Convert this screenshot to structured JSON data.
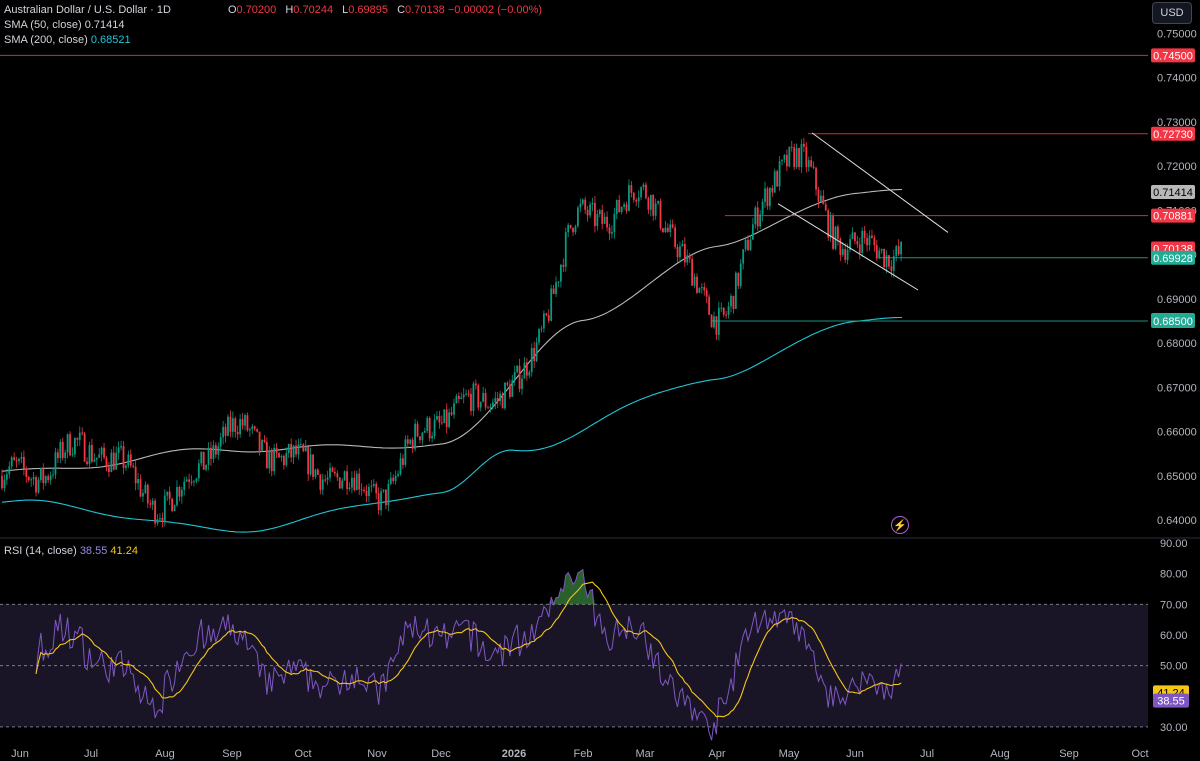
{
  "header": {
    "symbol": "Australian Dollar / U.S. Dollar · 1D",
    "open_label": "O",
    "open": "0.70200",
    "high_label": "H",
    "high": "0.70244",
    "low_label": "L",
    "low": "0.69895",
    "close_label": "C",
    "close": "0.70138",
    "change": "−0.00002 (−0.00%)",
    "sma50_label": "SMA (50, close)",
    "sma50_value": "0.71414",
    "sma200_label": "SMA (200, close)",
    "sma200_value": "0.68521",
    "currency_button": "USD",
    "rsi_label": "RSI (14, close)",
    "rsi_value": "38.55",
    "rsi_ma_value": "41.24"
  },
  "colors": {
    "background": "#000000",
    "up": "#089981",
    "down": "#f23645",
    "sma50": "#b8b8b8",
    "sma200": "#22c3d6",
    "rsi": "#7e57c2",
    "rsi_ma": "#f5c518",
    "rsi_band": "#1a1526",
    "overbought_fill": "#4caf50"
  },
  "chart_data": [
    {
      "type": "candlestick",
      "title": "Australian Dollar / U.S. Dollar · 1D",
      "y_axis": {
        "ticks": [
          "0.75000",
          "0.74000",
          "0.73000",
          "0.72000",
          "0.71000",
          "0.70000",
          "0.69000",
          "0.68000",
          "0.67000",
          "0.66000",
          "0.65000",
          "0.64000"
        ],
        "ylim": [
          0.6362,
          0.753
        ]
      },
      "x_axis": {
        "ticks": [
          "Jun",
          "Jul",
          "Aug",
          "Sep",
          "Oct",
          "Nov",
          "Dec",
          "2026",
          "Feb",
          "Mar",
          "Apr",
          "May",
          "Jun",
          "Jul",
          "Aug",
          "Sep",
          "Oct"
        ]
      },
      "price_path_anchors": [
        {
          "date": "Jun 2025",
          "close": 0.65
        },
        {
          "date": "Jul 2025",
          "close": 0.6565
        },
        {
          "date": "Aug 2025",
          "close": 0.644
        },
        {
          "date": "Sep 2025",
          "close": 0.66
        },
        {
          "date": "Oct 2025",
          "close": 0.6525
        },
        {
          "date": "Nov 2025",
          "close": 0.6465
        },
        {
          "date": "Dec 2025",
          "close": 0.6635
        },
        {
          "date": "2026",
          "close": 0.67
        },
        {
          "date": "Feb 2026",
          "close": 0.708
        },
        {
          "date": "Mar 2026",
          "close": 0.713
        },
        {
          "date": "Apr 2026",
          "close": 0.687
        },
        {
          "date": "May 2026",
          "close": 0.722
        },
        {
          "date": "Jun 2026",
          "close": 0.7014
        }
      ],
      "sma50_anchors": [
        {
          "date": "Jun 2025",
          "value": 0.651
        },
        {
          "date": "Sep 2025",
          "value": 0.656
        },
        {
          "date": "Dec 2025",
          "value": 0.657
        },
        {
          "date": "Feb 2026",
          "value": 0.685
        },
        {
          "date": "Apr 2026",
          "value": 0.702
        },
        {
          "date": "Jun 2026",
          "value": 0.7141
        }
      ],
      "sma200_anchors": [
        {
          "date": "Jun 2025",
          "value": 0.644
        },
        {
          "date": "Sep 2025",
          "value": 0.6378
        },
        {
          "date": "Dec 2025",
          "value": 0.646
        },
        {
          "date": "2026",
          "value": 0.656
        },
        {
          "date": "Apr 2026",
          "value": 0.672
        },
        {
          "date": "Jun 2026",
          "value": 0.6852
        }
      ],
      "horizontal_levels": [
        {
          "label": "0.74500",
          "value": 0.745,
          "color": "#f23645"
        },
        {
          "label": "0.72730",
          "value": 0.7273,
          "color": "#f23645"
        },
        {
          "label": "0.71414",
          "value": 0.71414,
          "color": "#b8b8b8"
        },
        {
          "label": "0.70881",
          "value": 0.70881,
          "color": "#f23645"
        },
        {
          "label": "0.70138",
          "value": 0.70138,
          "color": "#f23645"
        },
        {
          "label": "0.69928",
          "value": 0.69928,
          "color": "#22ab94"
        },
        {
          "label": "0.68521",
          "value": 0.68521,
          "color": "#22c3d6"
        },
        {
          "label": "0.68500",
          "value": 0.685,
          "color": "#22ab94"
        }
      ],
      "channel": {
        "upper": [
          {
            "date": "May 2026",
            "value": 0.7275
          },
          {
            "date": "Jul 2026",
            "value": 0.705
          }
        ],
        "lower": [
          {
            "date": "May 2026",
            "value": 0.7115
          },
          {
            "date": "Jul 2026",
            "value": 0.692
          }
        ]
      }
    },
    {
      "type": "line",
      "title": "RSI (14, close)",
      "y_axis": {
        "ticks": [
          "90.00",
          "80.00",
          "70.00",
          "60.00",
          "50.00",
          "40.00",
          "30.00"
        ],
        "ylim": [
          27,
          91
        ]
      },
      "guides": [
        70,
        50,
        30
      ],
      "series": [
        {
          "name": "RSI",
          "last_value": 38.55
        },
        {
          "name": "RSI-based MA",
          "last_value": 41.24
        }
      ]
    }
  ]
}
